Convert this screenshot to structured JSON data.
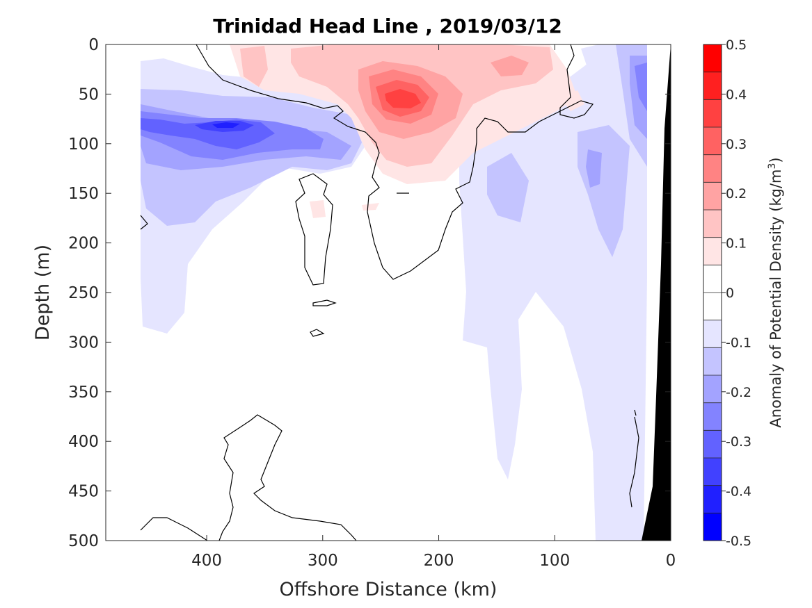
{
  "chart_data": {
    "type": "contour",
    "title": "Trinidad Head Line , 2019/03/12",
    "xlabel": "Offshore Distance (km)",
    "ylabel": "Depth (m)",
    "xlim": [
      487,
      0
    ],
    "ylim": [
      0,
      500
    ],
    "x_reversed": true,
    "y_reversed": true,
    "xticks": [
      400,
      300,
      200,
      100,
      0
    ],
    "yticks": [
      0,
      50,
      100,
      150,
      200,
      250,
      300,
      350,
      400,
      450,
      500
    ],
    "colorbar": {
      "label_prefix": "Anomaly of Potential Density (kg/m",
      "label_sup": "3",
      "label_suffix": ")",
      "range": [
        -0.5,
        0.5
      ],
      "ticks": [
        0.5,
        0.4,
        0.3,
        0.2,
        0.1,
        0,
        -0.1,
        -0.2,
        -0.3,
        -0.4,
        -0.5
      ],
      "tick_labels": [
        "0.5",
        "0.4",
        "0.3",
        "0.2",
        "0.1",
        "0",
        "-0.1",
        "-0.2",
        "-0.3",
        "-0.4",
        "-0.5"
      ],
      "colors_top_to_bottom": [
        "#ff0000",
        "#ff2020",
        "#ff4141",
        "#ff6262",
        "#ff8383",
        "#ffa3a3",
        "#ffc4c4",
        "#ffe5e5",
        "#ffffff",
        "#ffffff",
        "#e5e5ff",
        "#c4c4ff",
        "#a3a3ff",
        "#8383ff",
        "#6262ff",
        "#4141ff",
        "#2020ff",
        "#0000ff"
      ]
    },
    "anomaly_features": [
      {
        "kind": "positive",
        "center_x_km": 235,
        "center_depth_m": 60,
        "peak": 0.4
      },
      {
        "kind": "positive",
        "center_x_km": 175,
        "center_depth_m": 30,
        "peak": 0.15
      },
      {
        "kind": "positive",
        "center_x_km": 365,
        "center_depth_m": 20,
        "peak": 0.1
      },
      {
        "kind": "negative",
        "center_x_km": 385,
        "center_depth_m": 80,
        "peak": -0.35
      },
      {
        "kind": "negative",
        "center_x_km": 450,
        "center_depth_m": 80,
        "peak": -0.3
      },
      {
        "kind": "negative",
        "center_x_km": 30,
        "center_depth_m": 40,
        "peak": -0.3
      }
    ],
    "land_color": "#000000"
  }
}
